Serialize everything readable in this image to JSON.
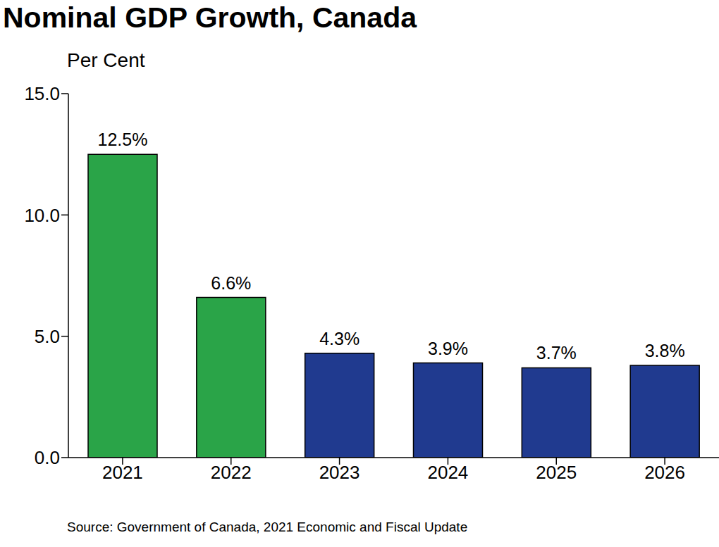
{
  "chart_data": {
    "type": "bar",
    "title": "Nominal GDP Growth, Canada",
    "y_label": "Per Cent",
    "source": "Source: Government of Canada, 2021 Economic and Fiscal Update",
    "categories": [
      "2021",
      "2022",
      "2023",
      "2024",
      "2025",
      "2026"
    ],
    "values": [
      12.5,
      6.6,
      4.3,
      3.9,
      3.7,
      3.8
    ],
    "value_labels": [
      "12.5%",
      "6.6%",
      "4.3%",
      "3.9%",
      "3.7%",
      "3.8%"
    ],
    "colors": [
      "#2aa448",
      "#2aa448",
      "#203a8f",
      "#203a8f",
      "#203a8f",
      "#203a8f"
    ],
    "ylim": [
      0,
      15
    ],
    "yticks": [
      {
        "value": 0,
        "label": "0.0"
      },
      {
        "value": 5,
        "label": "5.0"
      },
      {
        "value": 10,
        "label": "10.0"
      },
      {
        "value": 15,
        "label": "15.0"
      }
    ],
    "grid": false,
    "data_labels": true
  }
}
